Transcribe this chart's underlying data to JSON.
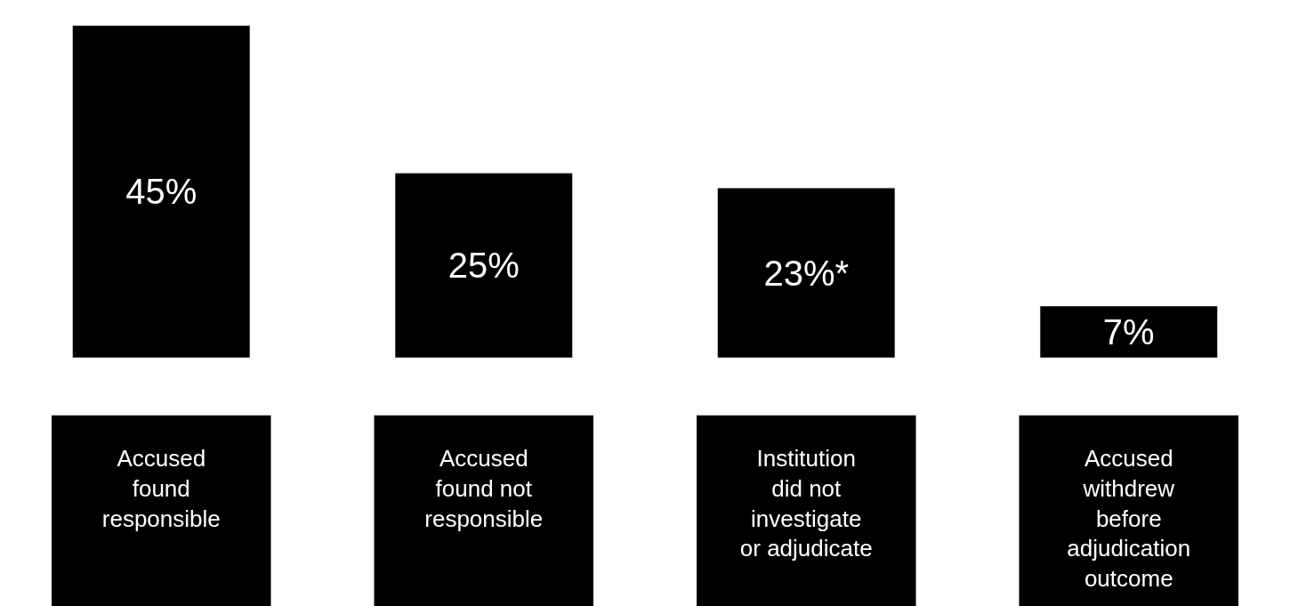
{
  "chart_data": {
    "type": "bar",
    "categories": [
      "Accused\nfound\nresponsible",
      "Accused\nfound not\nresponsible",
      "Institution\ndid not\ninvestigate\nor adjudicate",
      "Accused\nwithdrew\nbefore\nadjudication\noutcome"
    ],
    "values": [
      45,
      25,
      23,
      7
    ],
    "value_labels": [
      "45%",
      "25%",
      "23%*",
      "7%"
    ],
    "color": "#000000",
    "tick_labels": "x"
  }
}
